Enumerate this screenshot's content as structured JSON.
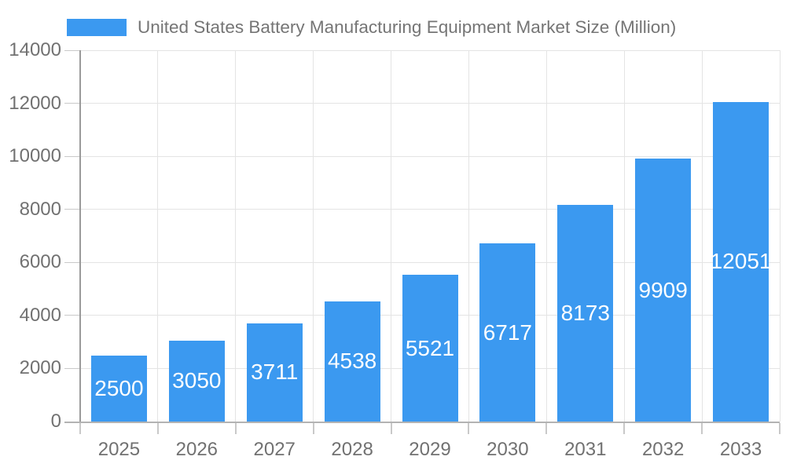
{
  "legend": {
    "label": "United States Battery Manufacturing Equipment Market Size (Million)"
  },
  "colors": {
    "bar": "#3B99F0",
    "bar_label": "#ffffff",
    "axis_text": "#717171",
    "legend_text": "#757575",
    "grid": "#e4e4e4",
    "y_axis_line": "#9a9a9a",
    "x_axis_line": "#b3b3b3",
    "tick": "#c9c9c9",
    "background": "#ffffff"
  },
  "chart_data": {
    "type": "bar",
    "title": "United States Battery Manufacturing Equipment Market Size (Million)",
    "categories": [
      "2025",
      "2026",
      "2027",
      "2028",
      "2029",
      "2030",
      "2031",
      "2032",
      "2033"
    ],
    "values": [
      2500,
      3050,
      3711,
      4538,
      5521,
      6717,
      8173,
      9909,
      12051
    ],
    "series_name": "United States Battery Manufacturing Equipment Market Size (Million)",
    "xlabel": "",
    "ylabel": "",
    "ylim": [
      0,
      14000
    ],
    "yticks": [
      0,
      2000,
      4000,
      6000,
      8000,
      10000,
      12000,
      14000
    ],
    "grid": true,
    "legend_position": "top",
    "value_label_position": "inside-center"
  }
}
